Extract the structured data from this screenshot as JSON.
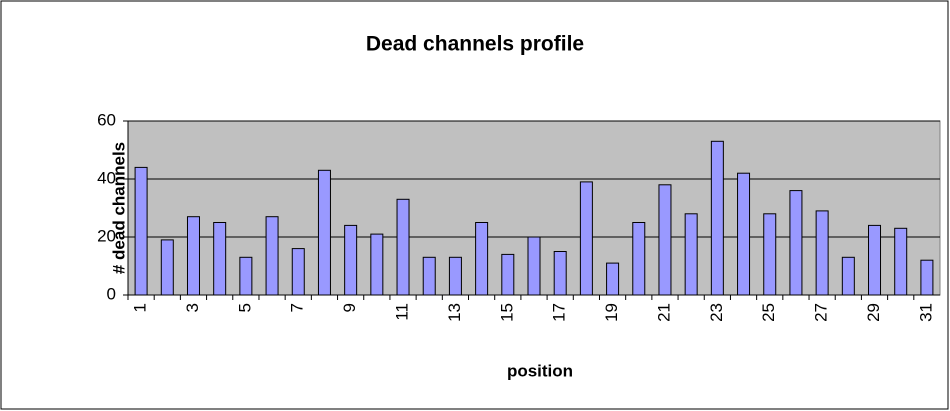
{
  "chart_data": {
    "type": "bar",
    "title": "Dead channels profile",
    "x_label": "position",
    "y_label": "# dead channels",
    "categories": [
      "1",
      null,
      "3",
      null,
      "5",
      null,
      "7",
      null,
      "9",
      null,
      "11",
      null,
      "13",
      null,
      "15",
      null,
      "17",
      null,
      "19",
      null,
      "21",
      null,
      "23",
      null,
      "25",
      null,
      "27",
      null,
      "29",
      null,
      "31"
    ],
    "values": [
      44,
      19,
      27,
      25,
      13,
      27,
      16,
      43,
      24,
      21,
      33,
      13,
      13,
      25,
      14,
      20,
      15,
      39,
      11,
      25,
      38,
      28,
      53,
      42,
      28,
      36,
      29,
      13,
      24,
      23,
      12
    ],
    "color": "#9999ff",
    "ylim": [
      0,
      60
    ],
    "yticks": [
      0,
      20,
      40,
      60
    ],
    "grid": true
  }
}
